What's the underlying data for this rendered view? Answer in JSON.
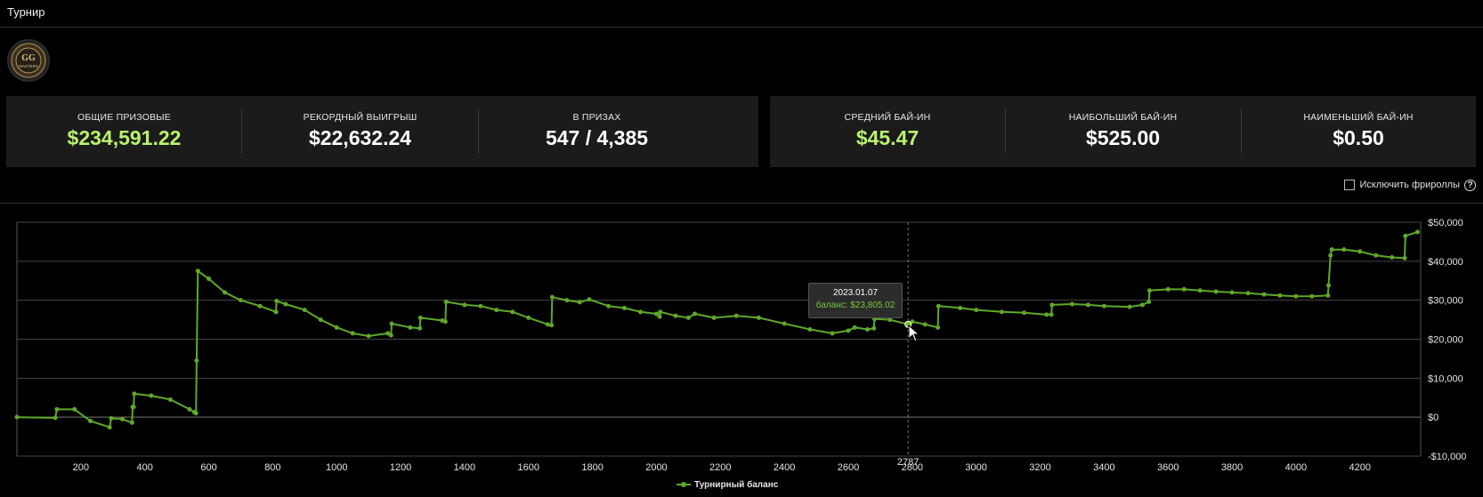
{
  "header": {
    "title": "Турнир"
  },
  "logo": {
    "icon": "gg-masters-logo-icon",
    "text": "GG",
    "subtext": "MASTERS"
  },
  "stats_left": [
    {
      "label": "ОБЩИЕ ПРИЗОВЫЕ",
      "value": "$234,591.22",
      "highlight": true
    },
    {
      "label": "РЕКОРДНЫЙ ВЫИГРЫШ",
      "value": "$22,632.24",
      "highlight": false
    },
    {
      "label": "В ПРИЗАХ",
      "value": "547 / 4,385",
      "highlight": false
    }
  ],
  "stats_right": [
    {
      "label": "СРЕДНИЙ БАЙ-ИН",
      "value": "$45.47",
      "highlight": true
    },
    {
      "label": "НАИБОЛЬШИЙ БАЙ-ИН",
      "value": "$525.00",
      "highlight": false
    },
    {
      "label": "НАИМЕНЬШИЙ БАЙ-ИН",
      "value": "$0.50",
      "highlight": false
    }
  ],
  "filters": {
    "exclude_freerolls_label": "Исключить фрироллы",
    "exclude_freerolls_checked": false,
    "help_icon": "question-circle-icon"
  },
  "tooltip": {
    "date": "2023.01.07",
    "balance": "баланс: $23,805.02"
  },
  "crosshair_label": "2787",
  "colors": {
    "accent": "#b9f26c",
    "series": "#5fa82a",
    "panel": "#1b1b1b"
  },
  "chart_data": {
    "type": "line",
    "series": [
      {
        "name": "Турнирный баланс",
        "points": [
          [
            0,
            0
          ],
          [
            120,
            -200
          ],
          [
            125,
            2000
          ],
          [
            180,
            2000
          ],
          [
            230,
            -1000
          ],
          [
            290,
            -2600
          ],
          [
            295,
            -300
          ],
          [
            330,
            -500
          ],
          [
            360,
            -1400
          ],
          [
            362,
            2600
          ],
          [
            365,
            2600
          ],
          [
            367,
            6000
          ],
          [
            420,
            5500
          ],
          [
            480,
            4500
          ],
          [
            540,
            2000
          ],
          [
            555,
            1300
          ],
          [
            560,
            1000
          ],
          [
            562,
            14500
          ],
          [
            566,
            37500
          ],
          [
            600,
            35500
          ],
          [
            650,
            32000
          ],
          [
            700,
            30000
          ],
          [
            760,
            28500
          ],
          [
            810,
            27000
          ],
          [
            812,
            29800
          ],
          [
            840,
            29000
          ],
          [
            900,
            27500
          ],
          [
            950,
            25000
          ],
          [
            1000,
            23000
          ],
          [
            1050,
            21500
          ],
          [
            1100,
            20800
          ],
          [
            1160,
            21500
          ],
          [
            1170,
            21000
          ],
          [
            1172,
            24000
          ],
          [
            1230,
            23000
          ],
          [
            1260,
            22800
          ],
          [
            1262,
            25500
          ],
          [
            1330,
            24800
          ],
          [
            1340,
            24500
          ],
          [
            1342,
            29600
          ],
          [
            1400,
            28800
          ],
          [
            1450,
            28500
          ],
          [
            1500,
            27500
          ],
          [
            1550,
            27000
          ],
          [
            1600,
            25500
          ],
          [
            1660,
            23800
          ],
          [
            1672,
            23600
          ],
          [
            1674,
            30800
          ],
          [
            1720,
            30000
          ],
          [
            1760,
            29500
          ],
          [
            1790,
            30200
          ],
          [
            1850,
            28500
          ],
          [
            1900,
            28000
          ],
          [
            1950,
            27000
          ],
          [
            2000,
            26500
          ],
          [
            2010,
            25800
          ],
          [
            2012,
            27000
          ],
          [
            2060,
            26000
          ],
          [
            2100,
            25500
          ],
          [
            2120,
            26500
          ],
          [
            2180,
            25500
          ],
          [
            2250,
            26000
          ],
          [
            2320,
            25500
          ],
          [
            2400,
            24000
          ],
          [
            2480,
            22500
          ],
          [
            2550,
            21500
          ],
          [
            2600,
            22200
          ],
          [
            2620,
            23000
          ],
          [
            2660,
            22500
          ],
          [
            2680,
            22800
          ],
          [
            2682,
            25200
          ],
          [
            2730,
            25000
          ],
          [
            2787,
            23805
          ],
          [
            2800,
            24500
          ],
          [
            2840,
            23800
          ],
          [
            2880,
            23000
          ],
          [
            2882,
            28500
          ],
          [
            2950,
            28000
          ],
          [
            3000,
            27500
          ],
          [
            3080,
            27000
          ],
          [
            3150,
            26800
          ],
          [
            3220,
            26300
          ],
          [
            3235,
            26300
          ],
          [
            3237,
            28800
          ],
          [
            3300,
            29000
          ],
          [
            3350,
            28800
          ],
          [
            3400,
            28500
          ],
          [
            3480,
            28300
          ],
          [
            3520,
            28800
          ],
          [
            3540,
            29600
          ],
          [
            3542,
            32500
          ],
          [
            3600,
            32800
          ],
          [
            3650,
            32800
          ],
          [
            3700,
            32500
          ],
          [
            3750,
            32200
          ],
          [
            3800,
            32000
          ],
          [
            3850,
            31800
          ],
          [
            3900,
            31500
          ],
          [
            3950,
            31200
          ],
          [
            4000,
            31000
          ],
          [
            4050,
            31000
          ],
          [
            4100,
            31200
          ],
          [
            4102,
            33800
          ],
          [
            4108,
            41500
          ],
          [
            4112,
            43000
          ],
          [
            4150,
            43000
          ],
          [
            4200,
            42500
          ],
          [
            4250,
            41500
          ],
          [
            4300,
            41000
          ],
          [
            4340,
            40800
          ],
          [
            4342,
            46500
          ],
          [
            4380,
            47500
          ]
        ]
      }
    ],
    "xticks": [
      200,
      400,
      600,
      800,
      1000,
      1200,
      1400,
      1600,
      1800,
      2000,
      2200,
      2400,
      2600,
      2800,
      3000,
      3200,
      3400,
      3600,
      3800,
      4000,
      4200
    ],
    "yticks": [
      -10000,
      0,
      10000,
      20000,
      30000,
      40000,
      50000
    ],
    "ytick_labels": [
      "-$10,000",
      "$0",
      "$10,000",
      "$20,000",
      "$30,000",
      "$40,000",
      "$50,000"
    ],
    "xlim": [
      0,
      4390
    ],
    "ylim": [
      -10000,
      50000
    ],
    "grid": true,
    "legend": "bottom-center",
    "xlabel": "",
    "ylabel": ""
  }
}
